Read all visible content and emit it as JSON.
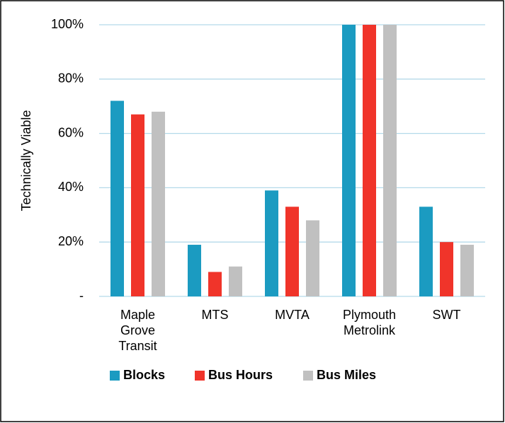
{
  "chart_data": {
    "type": "bar",
    "y_label": "Technically Viable",
    "categories": [
      [
        "Maple",
        "Grove",
        "Transit"
      ],
      [
        "MTS"
      ],
      [
        "MVTA"
      ],
      [
        "Plymouth",
        "Metrolink"
      ],
      [
        "SWT"
      ]
    ],
    "series": [
      {
        "name": "Blocks",
        "color": "#1b9bc1",
        "values": [
          72,
          19,
          39,
          100,
          33
        ]
      },
      {
        "name": "Bus Hours",
        "color": "#f0342a",
        "values": [
          67,
          9,
          33,
          100,
          20
        ]
      },
      {
        "name": "Bus Miles",
        "color": "#c0c0c0",
        "values": [
          68,
          11,
          28,
          100,
          19
        ]
      }
    ],
    "ylim": [
      0,
      100
    ],
    "yticks": [
      {
        "value": 0,
        "label": "-"
      },
      {
        "value": 20,
        "label": "20%"
      },
      {
        "value": 40,
        "label": "40%"
      },
      {
        "value": 60,
        "label": "60%"
      },
      {
        "value": 80,
        "label": "80%"
      },
      {
        "value": 100,
        "label": "100%"
      }
    ],
    "grid": true
  }
}
